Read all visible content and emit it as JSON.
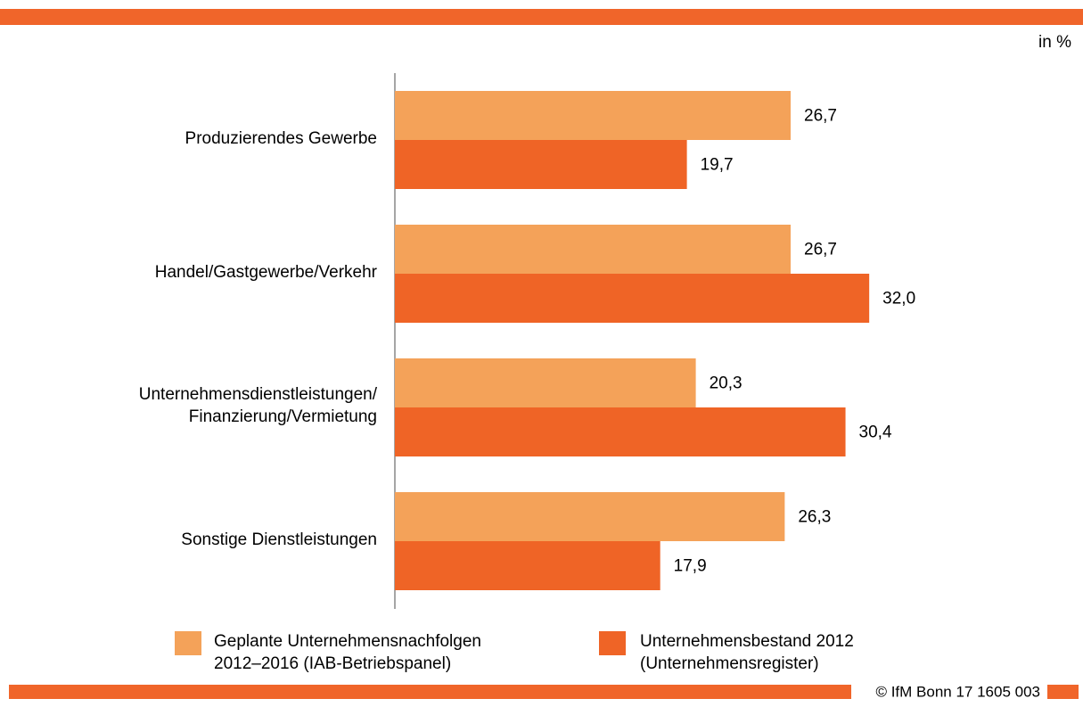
{
  "chart_data": {
    "type": "barh",
    "unit": "in %",
    "source": "© IfM Bonn 17 1605 003",
    "categories": [
      "Produzierendes Gewerbe",
      "Handel/Gastgewerbe/Verkehr",
      "Unternehmensdienstleistungen/\nFinanzierung/Vermietung",
      "Sonstige Dienstleistungen"
    ],
    "series": [
      {
        "name": "Geplante Unternehmensnachfolgen\n2012–2016 (IAB-Betriebspanel)",
        "color": "#f4a259",
        "values": [
          26.7,
          26.7,
          20.3,
          26.3
        ],
        "value_labels": [
          "26,7",
          "26,7",
          "20,3",
          "26,3"
        ]
      },
      {
        "name": "Unternehmensbestand 2012\n(Unternehmensregister)",
        "color": "#ef6426",
        "values": [
          19.7,
          32.0,
          30.4,
          17.9
        ],
        "value_labels": [
          "19,7",
          "32,0",
          "30,4",
          "17,9"
        ]
      }
    ],
    "xlim": [
      0,
      35
    ]
  }
}
